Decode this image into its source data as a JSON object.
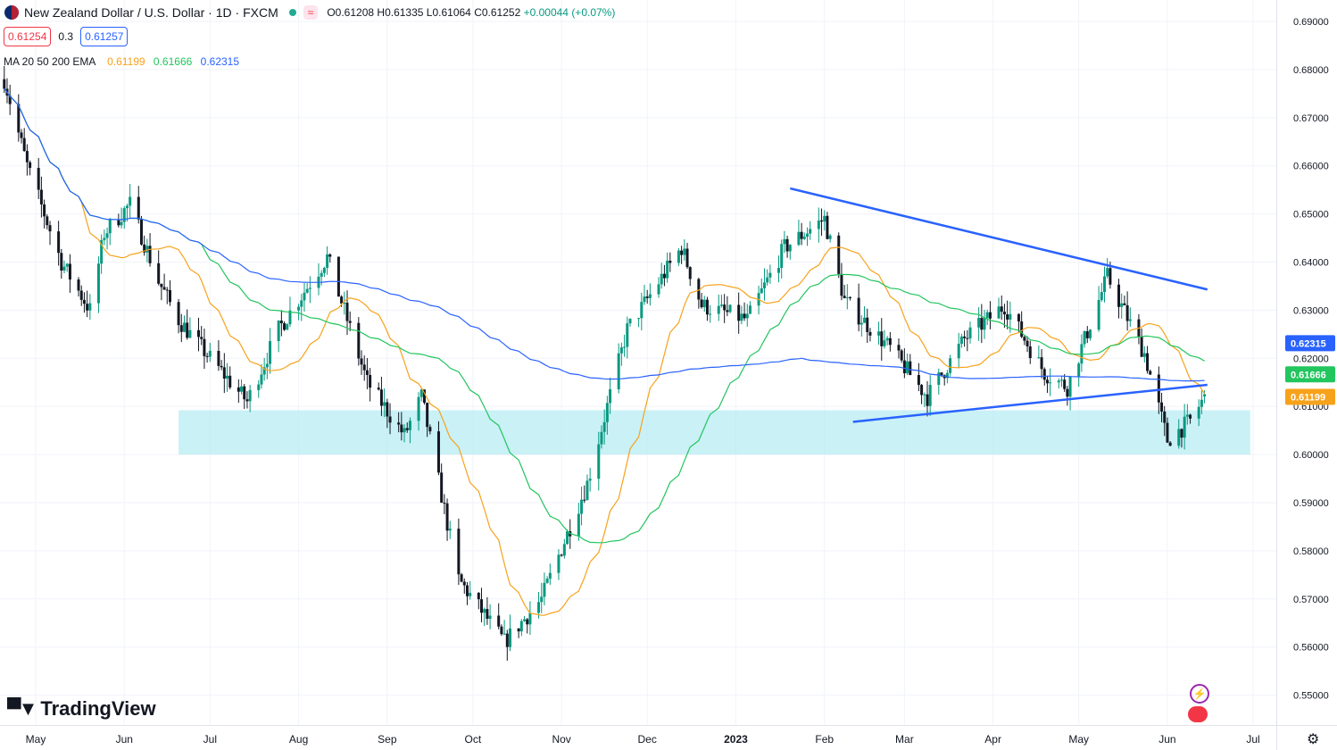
{
  "header": {
    "symbol_title": "New Zealand Dollar / U.S. Dollar · 1D · FXCM",
    "pill": "≈",
    "open": "O0.61208",
    "high": "H0.61335",
    "low": "L0.61064",
    "close": "C0.61252",
    "change": "+0.00044 (+0.07%)"
  },
  "quote": {
    "bid": "0.61254",
    "spread": "0.3",
    "ask": "0.61257"
  },
  "indicator": {
    "label": "MA 20 50 200 EMA",
    "v20": "0.61199",
    "v50": "0.61666",
    "v200": "0.62315"
  },
  "branding": {
    "logo_text": "TradingView"
  },
  "colors": {
    "up": "#089981",
    "down": "#131722",
    "ma20": "#f7a21b",
    "ma50": "#22c55e",
    "ma200": "#2962ff",
    "trendline": "#2962ff",
    "zone": "#b2ebf2",
    "grid": "#f0f3fa",
    "axis_text": "#131722"
  },
  "chart_data": {
    "type": "candlestick",
    "title": "New Zealand Dollar / U.S. Dollar · 1D · FXCM",
    "ylim": [
      0.545,
      0.691
    ],
    "y_ticks": [
      "0.69000",
      "0.68000",
      "0.67000",
      "0.66000",
      "0.65000",
      "0.64000",
      "0.63000",
      "0.62000",
      "0.61000",
      "0.60000",
      "0.59000",
      "0.58000",
      "0.57000",
      "0.56000",
      "0.55000"
    ],
    "x_ticks": [
      {
        "label": "May",
        "x": "2022-05-01"
      },
      {
        "label": "Jun",
        "x": "2022-06-01"
      },
      {
        "label": "Jul",
        "x": "2022-07-01"
      },
      {
        "label": "Aug",
        "x": "2022-08-01"
      },
      {
        "label": "Sep",
        "x": "2022-09-01"
      },
      {
        "label": "Oct",
        "x": "2022-10-01"
      },
      {
        "label": "Nov",
        "x": "2022-11-01"
      },
      {
        "label": "Dec",
        "x": "2022-12-01"
      },
      {
        "label": "2023",
        "x": "2023-01-01"
      },
      {
        "label": "Feb",
        "x": "2023-02-01"
      },
      {
        "label": "Mar",
        "x": "2023-03-01"
      },
      {
        "label": "Apr",
        "x": "2023-04-01"
      },
      {
        "label": "May",
        "x": "2023-05-01"
      },
      {
        "label": "Jun",
        "x": "2023-06-01"
      },
      {
        "label": "Jul",
        "x": "2023-07-01"
      }
    ],
    "series_close_anchors": [
      {
        "x": "2022-04-20",
        "y": 0.678
      },
      {
        "x": "2022-04-28",
        "y": 0.66
      },
      {
        "x": "2022-05-10",
        "y": 0.64
      },
      {
        "x": "2022-05-20",
        "y": 0.63
      },
      {
        "x": "2022-05-25",
        "y": 0.646
      },
      {
        "x": "2022-06-03",
        "y": 0.652
      },
      {
        "x": "2022-06-13",
        "y": 0.636
      },
      {
        "x": "2022-06-20",
        "y": 0.628
      },
      {
        "x": "2022-07-01",
        "y": 0.62
      },
      {
        "x": "2022-07-14",
        "y": 0.611
      },
      {
        "x": "2022-07-25",
        "y": 0.626
      },
      {
        "x": "2022-08-11",
        "y": 0.641
      },
      {
        "x": "2022-08-25",
        "y": 0.615
      },
      {
        "x": "2022-09-07",
        "y": 0.604
      },
      {
        "x": "2022-09-13",
        "y": 0.612
      },
      {
        "x": "2022-09-26",
        "y": 0.574
      },
      {
        "x": "2022-10-12",
        "y": 0.561
      },
      {
        "x": "2022-10-25",
        "y": 0.57
      },
      {
        "x": "2022-11-10",
        "y": 0.594
      },
      {
        "x": "2022-11-24",
        "y": 0.626
      },
      {
        "x": "2022-12-13",
        "y": 0.643
      },
      {
        "x": "2022-12-20",
        "y": 0.631
      },
      {
        "x": "2023-01-05",
        "y": 0.628
      },
      {
        "x": "2023-01-18",
        "y": 0.643
      },
      {
        "x": "2023-02-01",
        "y": 0.649
      },
      {
        "x": "2023-02-08",
        "y": 0.632
      },
      {
        "x": "2023-02-24",
        "y": 0.622
      },
      {
        "x": "2023-03-09",
        "y": 0.612
      },
      {
        "x": "2023-03-22",
        "y": 0.624
      },
      {
        "x": "2023-04-05",
        "y": 0.631
      },
      {
        "x": "2023-04-19",
        "y": 0.617
      },
      {
        "x": "2023-04-27",
        "y": 0.614
      },
      {
        "x": "2023-05-11",
        "y": 0.637
      },
      {
        "x": "2023-05-24",
        "y": 0.621
      },
      {
        "x": "2023-06-01",
        "y": 0.603
      },
      {
        "x": "2023-06-09",
        "y": 0.607
      },
      {
        "x": "2023-06-15",
        "y": 0.613
      }
    ],
    "ma_values_last": {
      "MA20": 0.61199,
      "MA50": 0.61666,
      "MA200": 0.62315
    },
    "annotations": {
      "upper_trendline": [
        {
          "x": "2023-01-20",
          "y": 0.6553
        },
        {
          "x": "2023-06-15",
          "y": 0.6343
        }
      ],
      "lower_trendline": [
        {
          "x": "2023-02-11",
          "y": 0.6068
        },
        {
          "x": "2023-06-15",
          "y": 0.6145
        }
      ],
      "support_zone": {
        "x0": "2022-06-20",
        "x1": "2023-06-30",
        "y0": 0.6,
        "y1": 0.6092
      }
    },
    "last_price_labels": [
      {
        "value": "0.62315",
        "color": "#2962ff"
      },
      {
        "value": "0.61666",
        "color": "#22c55e"
      },
      {
        "value": "0.61199",
        "color": "#f7a21b"
      }
    ]
  }
}
